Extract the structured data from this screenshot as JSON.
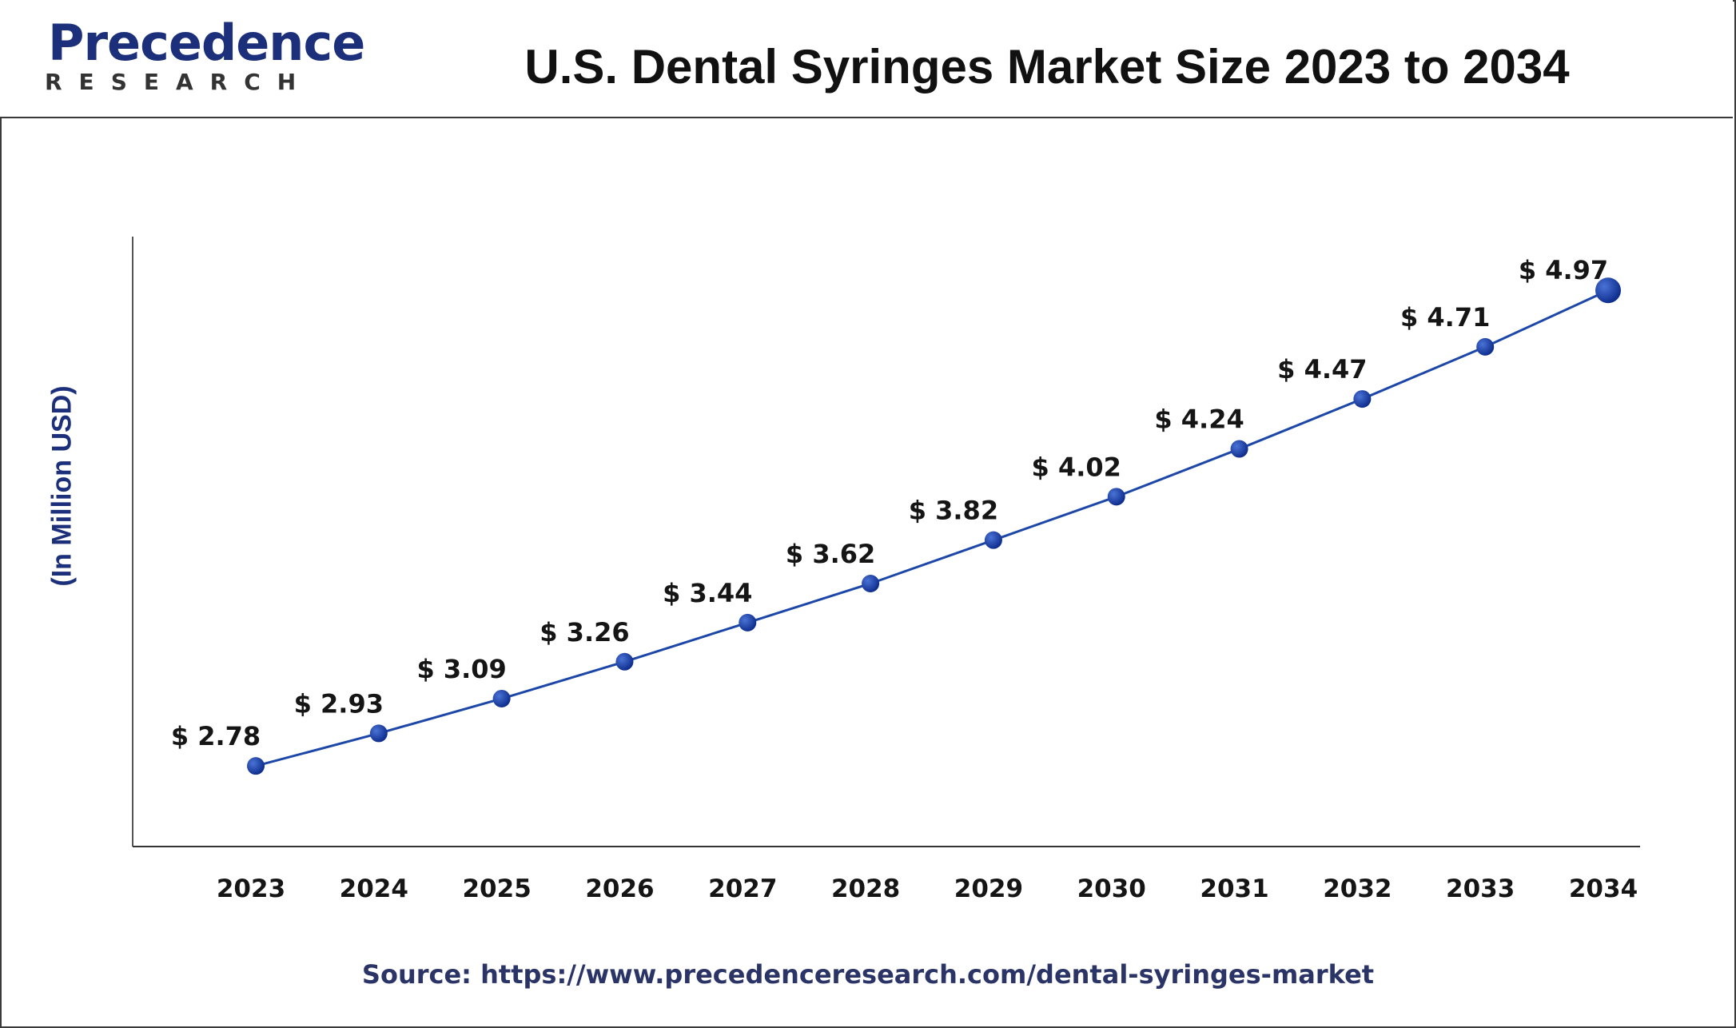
{
  "header": {
    "logo_word": "Precedence",
    "logo_sub": "RESEARCH",
    "title": "U.S. Dental Syringes Market Size 2023 to 2034"
  },
  "chart_data": {
    "type": "line",
    "title": "U.S. Dental Syringes Market Size 2023 to 2034",
    "xlabel": "",
    "ylabel": "(In Million USD)",
    "categories": [
      "2023",
      "2024",
      "2025",
      "2026",
      "2027",
      "2028",
      "2029",
      "2030",
      "2031",
      "2032",
      "2033",
      "2034"
    ],
    "series": [
      {
        "values": [
          2.78,
          2.93,
          3.09,
          3.26,
          3.44,
          3.62,
          3.82,
          4.02,
          4.24,
          4.47,
          4.71,
          4.97
        ],
        "labels": [
          "$ 2.78",
          "$ 2.93",
          "$ 3.09",
          "$ 3.26",
          "$ 3.44",
          "$ 3.62",
          "$ 3.82",
          "$ 4.02",
          "$ 4.24",
          "$ 4.47",
          "$ 4.71",
          "$ 4.97"
        ]
      }
    ],
    "ylim": [
      2.35,
      5.35
    ],
    "grid": false,
    "legend": "none",
    "colors": {
      "line": "#1c47a8",
      "marker": "#0b2a8a"
    }
  },
  "footer": {
    "source": "Source: https://www.precedenceresearch.com/dental-syringes-market"
  }
}
